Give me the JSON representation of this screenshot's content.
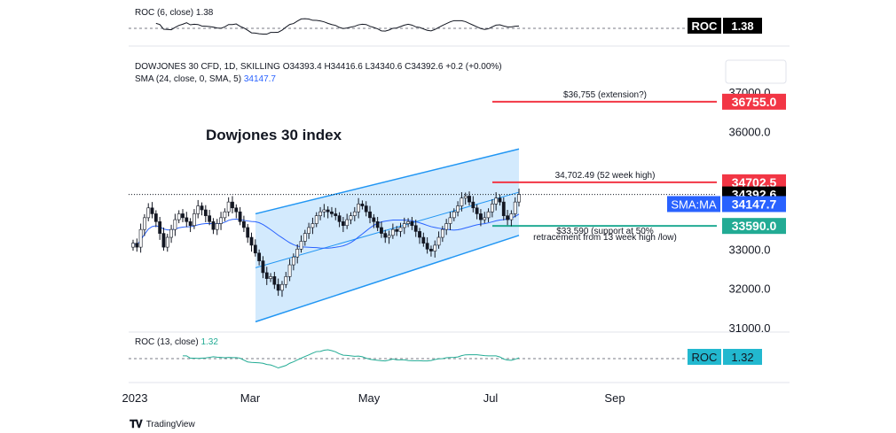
{
  "chart_data": {
    "type": "candlestick",
    "title": "Dowjones 30 index",
    "instrument": {
      "name": "DOWJONES 30 CFD, 1D, SKILLING",
      "open": "O34393.4",
      "high": "H34416.6",
      "low": "L34340.6",
      "close": "C34392.6",
      "change": "+0.2 (+0.00%)"
    },
    "sma_legend": {
      "text": "SMA (24, close, 0, SMA, 5)",
      "value": "34147.7"
    },
    "roc_top": {
      "text": "ROC (6, close)",
      "value": "1.38",
      "tag_label": "ROC",
      "tag_value": "1.38"
    },
    "roc_bottom": {
      "text": "ROC (13, close)",
      "value": "1.32",
      "tag_label": "ROC",
      "tag_value": "1.32"
    },
    "y_axis": {
      "ticks": [
        "37000.0",
        "36000.0",
        "33000.0",
        "32000.0",
        "31000.0"
      ],
      "ylim": [
        31000,
        37000
      ]
    },
    "x_axis": {
      "ticks": [
        "2023",
        "Mar",
        "May",
        "Jul",
        "Sep"
      ]
    },
    "levels": [
      {
        "label": "$36,755 (extension?)",
        "value": 36755,
        "tag": "36755.0",
        "color": "#f23645"
      },
      {
        "label": "34,702.49 (52 week high)",
        "value": 34702.5,
        "tag": "34702.5",
        "color": "#f23645"
      },
      {
        "label": "$33,590 (support at 50%",
        "label2": "retracement from 13 week high /low)",
        "value": 33590,
        "tag": "33590.0",
        "color": "#22ab94"
      }
    ],
    "price_tag": {
      "value": "34392.6",
      "color": "#000000"
    },
    "sma_tag": {
      "label": "SMA:MA",
      "value": "34147.7",
      "color": "#2962ff"
    },
    "channel": {
      "upper": [
        [
          33900,
          35550
        ]
      ],
      "lower": [
        [
          31150,
          33350
        ]
      ]
    },
    "ohlc_closes": [
      33150,
      33050,
      33500,
      33800,
      34050,
      33900,
      33700,
      33400,
      33050,
      33300,
      33500,
      33750,
      33900,
      33800,
      33700,
      33600,
      33900,
      34100,
      34000,
      33850,
      33700,
      33500,
      33650,
      33800,
      33950,
      34200,
      34050,
      33950,
      33700,
      33550,
      33300,
      33100,
      32900,
      32700,
      32400,
      32250,
      32300,
      32100,
      31950,
      32100,
      32300,
      32600,
      32800,
      33000,
      33200,
      33400,
      33550,
      33650,
      33850,
      33950,
      34000,
      33950,
      33900,
      33850,
      33700,
      33600,
      33750,
      33850,
      33950,
      34150,
      34100,
      33950,
      33800,
      33700,
      33550,
      33400,
      33300,
      33350,
      33500,
      33450,
      33550,
      33650,
      33700,
      33600,
      33450,
      33300,
      33150,
      33000,
      32950,
      33100,
      33300,
      33500,
      33650,
      33800,
      33950,
      34100,
      34300,
      34350,
      34200,
      34050,
      33900,
      33750,
      33800,
      33950,
      34150,
      34300,
      34200,
      33850,
      33750,
      33900,
      34200,
      34392.6
    ]
  }
}
